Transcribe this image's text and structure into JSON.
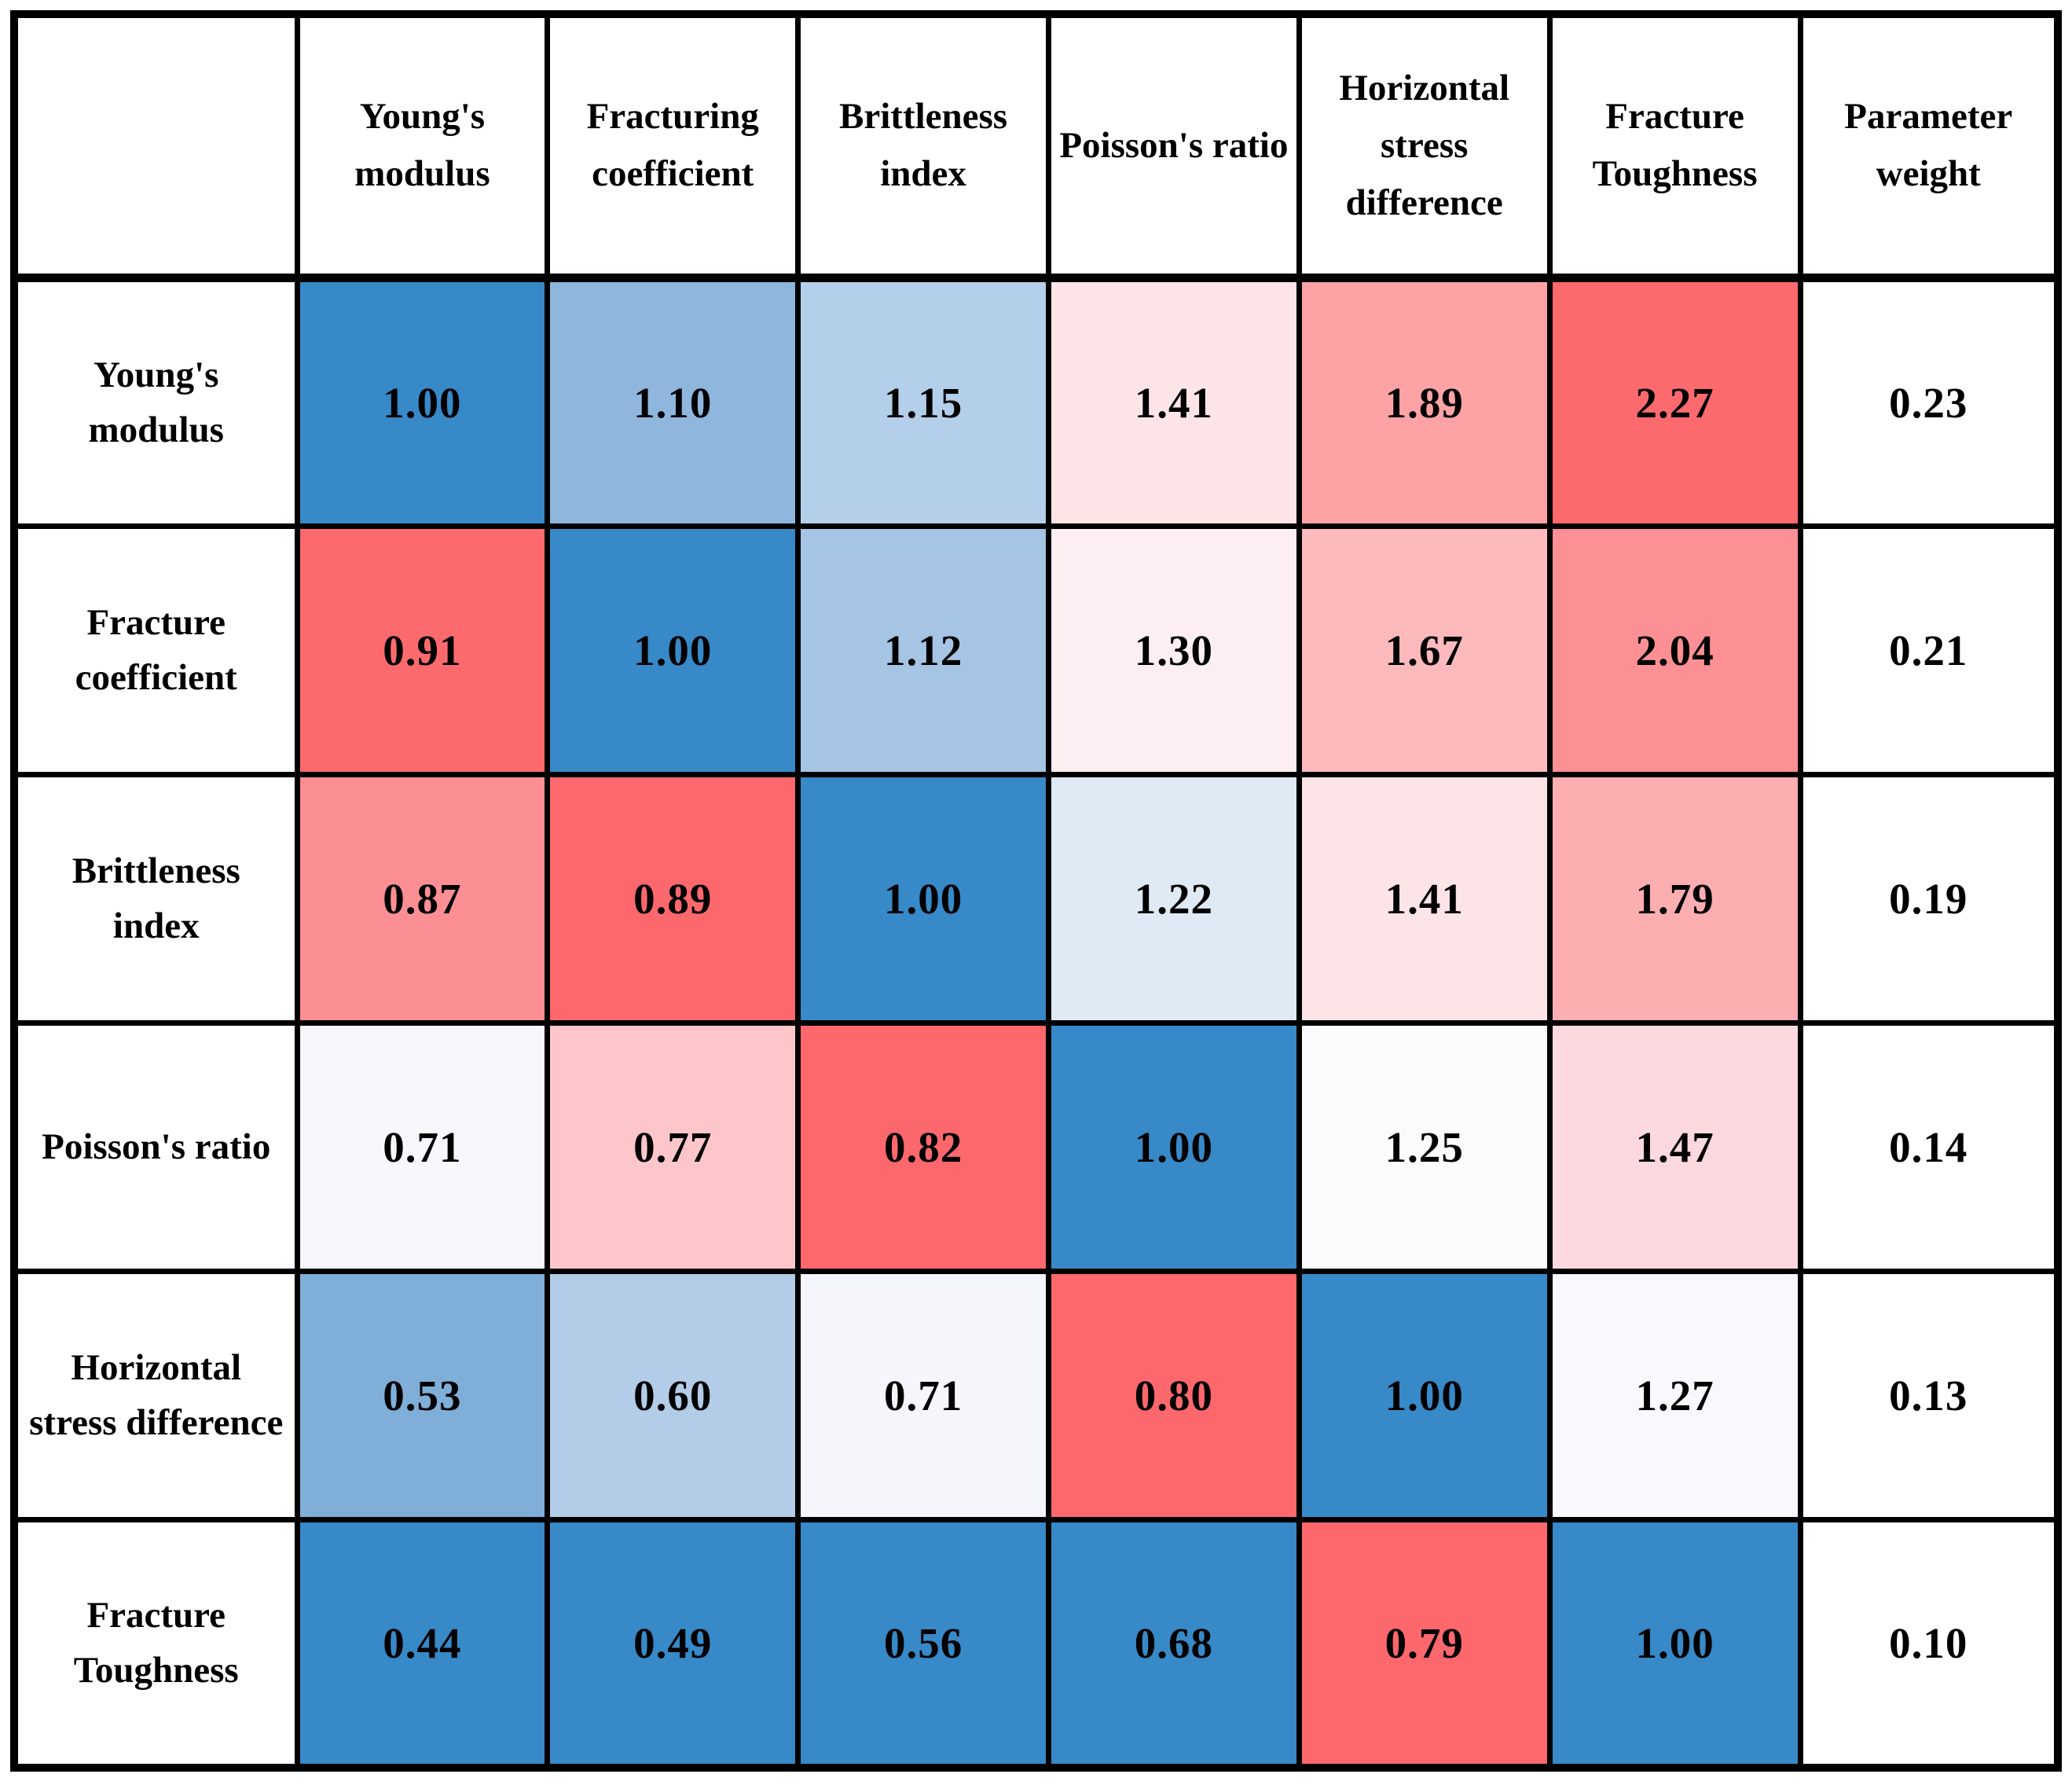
{
  "table": {
    "corner": "",
    "column_headers": [
      "Young's modulus",
      "Fracturing coefficient",
      "Brittleness index",
      "Poisson's ratio",
      "Horizontal stress difference",
      "Fracture Toughness",
      "Parameter weight"
    ],
    "rows": [
      {
        "label": "Young's modulus",
        "cells": [
          {
            "v": "1.00",
            "bg": "#3789c8"
          },
          {
            "v": "1.10",
            "bg": "#8fb7de"
          },
          {
            "v": "1.15",
            "bg": "#b4cfe9"
          },
          {
            "v": "1.41",
            "bg": "#fde5e7"
          },
          {
            "v": "1.89",
            "bg": "#fda3a6"
          },
          {
            "v": "2.27",
            "bg": "#fd6a6e"
          }
        ],
        "weight": "0.23"
      },
      {
        "label": "Fracture coefficient",
        "cells": [
          {
            "v": "0.91",
            "bg": "#fd6a6e"
          },
          {
            "v": "1.00",
            "bg": "#3789c8"
          },
          {
            "v": "1.12",
            "bg": "#a6c4e3"
          },
          {
            "v": "1.30",
            "bg": "#fdeff1"
          },
          {
            "v": "1.67",
            "bg": "#fdbabd"
          },
          {
            "v": "2.04",
            "bg": "#fc9094"
          }
        ],
        "weight": "0.21"
      },
      {
        "label": "Brittleness index",
        "cells": [
          {
            "v": "0.87",
            "bg": "#fc8f94"
          },
          {
            "v": "0.89",
            "bg": "#fd686d"
          },
          {
            "v": "1.00",
            "bg": "#3789c8"
          },
          {
            "v": "1.22",
            "bg": "#dfeaf5"
          },
          {
            "v": "1.41",
            "bg": "#fde5e7"
          },
          {
            "v": "1.79",
            "bg": "#fdaeb1"
          }
        ],
        "weight": "0.19"
      },
      {
        "label": "Poisson's ratio",
        "cells": [
          {
            "v": "0.71",
            "bg": "#f7f8fc"
          },
          {
            "v": "0.77",
            "bg": "#fdc6ca"
          },
          {
            "v": "0.82",
            "bg": "#fd686d"
          },
          {
            "v": "1.00",
            "bg": "#3789c8"
          },
          {
            "v": "1.25",
            "bg": "#fbfbfd"
          },
          {
            "v": "1.47",
            "bg": "#fcd9de"
          }
        ],
        "weight": "0.14"
      },
      {
        "label": "Horizontal stress difference",
        "cells": [
          {
            "v": "0.53",
            "bg": "#7fafd9"
          },
          {
            "v": "0.60",
            "bg": "#b3cce7"
          },
          {
            "v": "0.71",
            "bg": "#f4f6fb"
          },
          {
            "v": "0.80",
            "bg": "#fd686d"
          },
          {
            "v": "1.00",
            "bg": "#3789c8"
          },
          {
            "v": "1.27",
            "bg": "#f9f8fc"
          }
        ],
        "weight": "0.13"
      },
      {
        "label": "Fracture Toughness",
        "cells": [
          {
            "v": "0.44",
            "bg": "#3789c8"
          },
          {
            "v": "0.49",
            "bg": "#3789c8"
          },
          {
            "v": "0.56",
            "bg": "#3789c8"
          },
          {
            "v": "0.68",
            "bg": "#3789c8"
          },
          {
            "v": "0.79",
            "bg": "#fd686d"
          },
          {
            "v": "1.00",
            "bg": "#3789c8"
          }
        ],
        "weight": "0.10"
      }
    ]
  },
  "chart_data": {
    "type": "heatmap",
    "title": "",
    "row_labels": [
      "Young's modulus",
      "Fracture coefficient",
      "Brittleness index",
      "Poisson's ratio",
      "Horizontal stress difference",
      "Fracture Toughness"
    ],
    "column_labels": [
      "Young's modulus",
      "Fracturing coefficient",
      "Brittleness index",
      "Poisson's ratio",
      "Horizontal stress difference",
      "Fracture Toughness"
    ],
    "matrix": [
      [
        1.0,
        1.1,
        1.15,
        1.41,
        1.89,
        2.27
      ],
      [
        0.91,
        1.0,
        1.12,
        1.3,
        1.67,
        2.04
      ],
      [
        0.87,
        0.89,
        1.0,
        1.22,
        1.41,
        1.79
      ],
      [
        0.71,
        0.77,
        0.82,
        1.0,
        1.25,
        1.47
      ],
      [
        0.53,
        0.6,
        0.71,
        0.8,
        1.0,
        1.27
      ],
      [
        0.44,
        0.49,
        0.56,
        0.68,
        0.79,
        1.0
      ]
    ],
    "parameter_weight_column_label": "Parameter weight",
    "parameter_weights": [
      0.23,
      0.21,
      0.19,
      0.14,
      0.13,
      0.1
    ],
    "colormap": {
      "blue_strong": "#3789c8",
      "neutral": "#ffffff",
      "red_strong": "#fd6a6e"
    },
    "legend_position": "none",
    "grid": true
  }
}
